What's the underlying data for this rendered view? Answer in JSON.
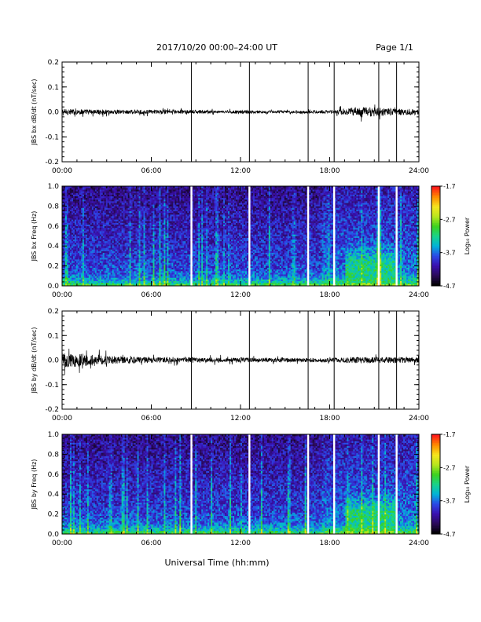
{
  "header": {
    "title": "2017/10/20  00:00–24:00 UT",
    "page": "Page 1/1"
  },
  "footer": {
    "xlabel": "Universal Time (hh:mm)"
  },
  "colorbar": {
    "label": "Log₁₀ Power",
    "ticks": [
      "-1.7",
      "-2.7",
      "-3.7",
      "-4.7"
    ],
    "tick_values": [
      -1.7,
      -2.7,
      -3.7,
      -4.7
    ],
    "range": [
      -4.7,
      -1.7
    ],
    "colors": [
      "#000000",
      "#2a0a5a",
      "#3a10b0",
      "#2a4ae8",
      "#00b4d8",
      "#19d38a",
      "#3cd21e",
      "#b8e61e",
      "#f5e61e",
      "#ff8c00",
      "#ff1a1a"
    ]
  },
  "chart_data": [
    {
      "type": "line",
      "ylabel": "JBS bx dB/dt (nT/sec)",
      "xlim": [
        "00:00",
        "24:00"
      ],
      "ylim": [
        -0.2,
        0.2
      ],
      "xticks": [
        "00:00",
        "06:00",
        "12:00",
        "18:00",
        "24:00"
      ],
      "yticks": [
        "-0.2",
        "-0.1",
        "0.0",
        "0.1",
        "0.2"
      ],
      "ytick_values": [
        -0.2,
        -0.1,
        0.0,
        0.1,
        0.2
      ],
      "spike_times_h": [
        8.7,
        12.6,
        16.55,
        18.3,
        21.3,
        22.5
      ],
      "envelope": {
        "t": [
          0,
          2,
          4,
          6,
          8,
          9,
          10,
          11,
          12,
          13,
          14,
          16,
          17,
          18,
          19,
          20,
          21,
          22,
          23,
          24
        ],
        "amp": [
          0.012,
          0.01,
          0.009,
          0.008,
          0.007,
          0.008,
          0.006,
          0.005,
          0.008,
          0.006,
          0.005,
          0.005,
          0.006,
          0.007,
          0.012,
          0.022,
          0.018,
          0.014,
          0.012,
          0.011
        ]
      }
    },
    {
      "type": "heatmap",
      "ylabel": "JBS bx Freq (Hz)",
      "xlim": [
        "00:00",
        "24:00"
      ],
      "ylim": [
        0.0,
        1.0
      ],
      "xticks": [
        "00:00",
        "06:00",
        "12:00",
        "18:00",
        "24:00"
      ],
      "yticks": [
        "0.0",
        "0.2",
        "0.4",
        "0.6",
        "0.8",
        "1.0"
      ],
      "ytick_values": [
        0.0,
        0.2,
        0.4,
        0.6,
        0.8,
        1.0
      ],
      "gap_times_h": [
        8.7,
        12.6,
        16.55,
        18.3,
        21.3,
        22.5
      ],
      "zlim": [
        -4.7,
        -1.7
      ]
    },
    {
      "type": "line",
      "ylabel": "JBS by dB/dt (nT/sec)",
      "xlim": [
        "00:00",
        "24:00"
      ],
      "ylim": [
        -0.2,
        0.2
      ],
      "xticks": [
        "00:00",
        "06:00",
        "12:00",
        "18:00",
        "24:00"
      ],
      "yticks": [
        "-0.2",
        "-0.1",
        "0.0",
        "0.1",
        "0.2"
      ],
      "ytick_values": [
        -0.2,
        -0.1,
        0.0,
        0.1,
        0.2
      ],
      "spike_times_h": [
        8.7,
        12.6,
        16.55,
        18.3,
        21.3,
        22.5
      ],
      "envelope": {
        "t": [
          0,
          1,
          2,
          3,
          4,
          6,
          8,
          10,
          12,
          14,
          16,
          18,
          20,
          22,
          23,
          24
        ],
        "amp": [
          0.03,
          0.028,
          0.022,
          0.018,
          0.014,
          0.012,
          0.01,
          0.01,
          0.009,
          0.008,
          0.008,
          0.009,
          0.012,
          0.012,
          0.011,
          0.011
        ]
      }
    },
    {
      "type": "heatmap",
      "ylabel": "JBS by Freq (Hz)",
      "xlim": [
        "00:00",
        "24:00"
      ],
      "ylim": [
        0.0,
        1.0
      ],
      "xticks": [
        "00:00",
        "06:00",
        "12:00",
        "18:00",
        "24:00"
      ],
      "yticks": [
        "0.0",
        "0.2",
        "0.4",
        "0.6",
        "0.8",
        "1.0"
      ],
      "ytick_values": [
        0.0,
        0.2,
        0.4,
        0.6,
        0.8,
        1.0
      ],
      "gap_times_h": [
        8.7,
        12.6,
        16.55,
        18.3,
        21.3,
        22.5
      ],
      "zlim": [
        -4.7,
        -1.7
      ]
    }
  ]
}
